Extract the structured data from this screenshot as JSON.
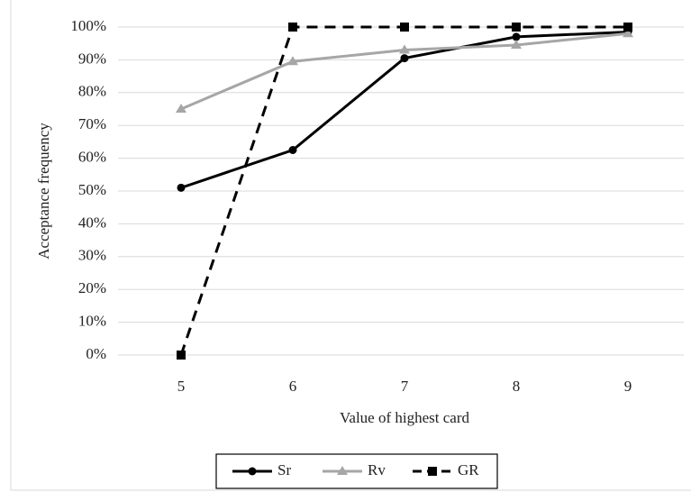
{
  "chart_data": {
    "type": "line",
    "x_label": "Value of highest card",
    "y_label": "Acceptance frequency",
    "categories": [
      "5",
      "6",
      "7",
      "8",
      "9"
    ],
    "series": [
      {
        "name": "Sr",
        "color": "#000000",
        "marker": "circle",
        "dash": false,
        "values": [
          51,
          62.5,
          90.5,
          97,
          98.5
        ]
      },
      {
        "name": "Rv",
        "color": "#a6a6a6",
        "marker": "triangle",
        "dash": false,
        "values": [
          75,
          89.5,
          93,
          94.5,
          98
        ]
      },
      {
        "name": "GR",
        "color": "#000000",
        "marker": "square",
        "dash": true,
        "values": [
          0,
          100,
          100,
          100,
          100
        ]
      }
    ],
    "ylim": [
      0,
      100
    ],
    "yticks": [
      {
        "value": 0,
        "label": "0%"
      },
      {
        "value": 10,
        "label": "10%"
      },
      {
        "value": 20,
        "label": "20%"
      },
      {
        "value": 30,
        "label": "30%"
      },
      {
        "value": 40,
        "label": "40%"
      },
      {
        "value": 50,
        "label": "50%"
      },
      {
        "value": 60,
        "label": "60%"
      },
      {
        "value": 70,
        "label": "70%"
      },
      {
        "value": 80,
        "label": "80%"
      },
      {
        "value": 90,
        "label": "90%"
      },
      {
        "value": 100,
        "label": "100%"
      }
    ],
    "grid": true,
    "legend": "bottom"
  }
}
